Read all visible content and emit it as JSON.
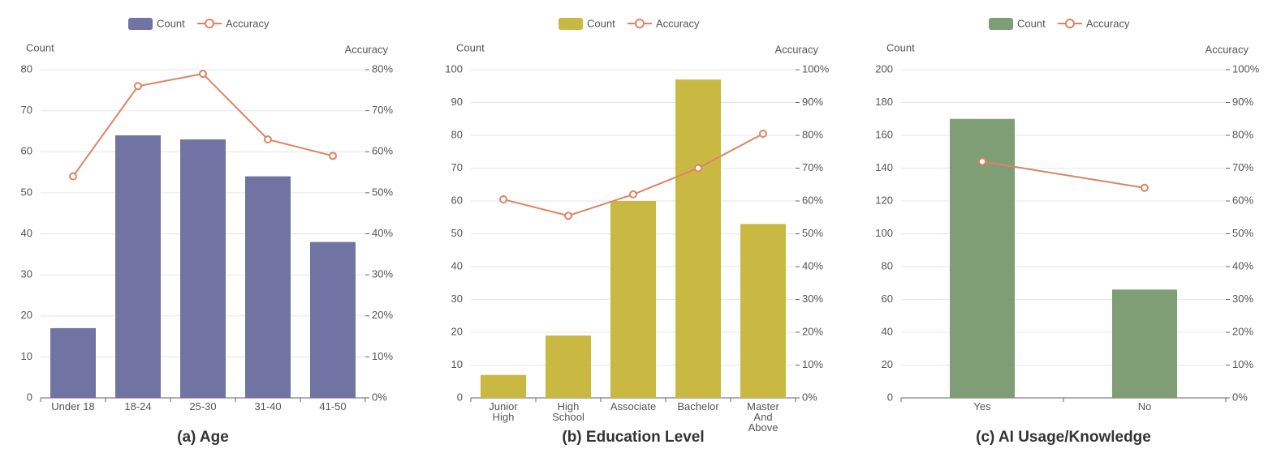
{
  "chart_data": [
    {
      "type": "bar",
      "title": "(a) Age",
      "y_label": "Count",
      "y2_label": "Accuracy",
      "categories": [
        "Under 18",
        "18-24",
        "25-30",
        "31-40",
        "41-50"
      ],
      "series": [
        {
          "name": "Count",
          "color": "#7173a3",
          "values": [
            17,
            64,
            63,
            54,
            38
          ]
        },
        {
          "name": "Accuracy",
          "type": "line",
          "axis": "y2",
          "color": "#dc8462",
          "values": [
            54,
            76,
            79,
            63,
            59
          ]
        }
      ],
      "ylim": [
        0,
        80
      ],
      "yticks": [
        0,
        10,
        20,
        30,
        40,
        50,
        60,
        70,
        80
      ],
      "y2lim": [
        0,
        80
      ],
      "y2ticks": [
        {
          "value": 0,
          "label": "0%"
        },
        {
          "value": 10,
          "label": "10%"
        },
        {
          "value": 20,
          "label": "20%"
        },
        {
          "value": 30,
          "label": "30%"
        },
        {
          "value": 40,
          "label": "40%"
        },
        {
          "value": 50,
          "label": "50%"
        },
        {
          "value": 60,
          "label": "60%"
        },
        {
          "value": 70,
          "label": "70%"
        },
        {
          "value": 80,
          "label": "80%"
        }
      ],
      "grid": true,
      "legend": "top"
    },
    {
      "type": "bar",
      "title": "(b) Education Level",
      "y_label": "Count",
      "y2_label": "Accuracy",
      "categories": [
        "Junior High",
        "High School",
        "Associate",
        "Bachelor",
        "Master And Above"
      ],
      "series": [
        {
          "name": "Count",
          "color": "#c9b942",
          "values": [
            7,
            19,
            60,
            97,
            53
          ]
        },
        {
          "name": "Accuracy",
          "type": "line",
          "axis": "y2",
          "color": "#dc8462",
          "values": [
            60.5,
            55.5,
            62,
            70,
            80.5
          ]
        }
      ],
      "ylim": [
        0,
        100
      ],
      "yticks": [
        0,
        10,
        20,
        30,
        40,
        50,
        60,
        70,
        80,
        90,
        100
      ],
      "y2lim": [
        0,
        100
      ],
      "y2ticks": [
        {
          "value": 0,
          "label": "0%"
        },
        {
          "value": 10,
          "label": "10%"
        },
        {
          "value": 20,
          "label": "20%"
        },
        {
          "value": 30,
          "label": "30%"
        },
        {
          "value": 40,
          "label": "40%"
        },
        {
          "value": 50,
          "label": "50%"
        },
        {
          "value": 60,
          "label": "60%"
        },
        {
          "value": 70,
          "label": "70%"
        },
        {
          "value": 80,
          "label": "80%"
        },
        {
          "value": 90,
          "label": "90%"
        },
        {
          "value": 100,
          "label": "100%"
        }
      ],
      "grid": true,
      "legend": "top"
    },
    {
      "type": "bar",
      "title": "(c) AI Usage/Knowledge",
      "y_label": "Count",
      "y2_label": "Accuracy",
      "categories": [
        "Yes",
        "No"
      ],
      "series": [
        {
          "name": "Count",
          "color": "#7f9e76",
          "values": [
            170,
            66
          ]
        },
        {
          "name": "Accuracy",
          "type": "line",
          "axis": "y2",
          "color": "#dc8462",
          "values": [
            72,
            64
          ]
        }
      ],
      "ylim": [
        0,
        200
      ],
      "yticks": [
        0,
        20,
        40,
        60,
        80,
        100,
        120,
        140,
        160,
        180,
        200
      ],
      "y2lim": [
        0,
        100
      ],
      "y2ticks": [
        {
          "value": 0,
          "label": "0%"
        },
        {
          "value": 10,
          "label": "10%"
        },
        {
          "value": 20,
          "label": "20%"
        },
        {
          "value": 30,
          "label": "30%"
        },
        {
          "value": 40,
          "label": "40%"
        },
        {
          "value": 50,
          "label": "50%"
        },
        {
          "value": 60,
          "label": "60%"
        },
        {
          "value": 70,
          "label": "70%"
        },
        {
          "value": 80,
          "label": "80%"
        },
        {
          "value": 90,
          "label": "90%"
        },
        {
          "value": 100,
          "label": "100%"
        }
      ],
      "grid": true,
      "legend": "top"
    }
  ]
}
